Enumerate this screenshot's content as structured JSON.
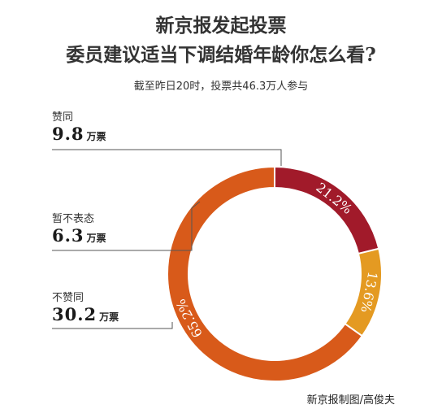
{
  "title_line1": "新京报发起投票",
  "title_line2": "委员建议适当下调结婚年龄你怎么看?",
  "subtitle": "截至昨日20时，投票共46.3万人参与",
  "legend": [
    {
      "name": "赞同",
      "num": "9.8",
      "unit": "万票"
    },
    {
      "name": "暂不表态",
      "num": "6.3",
      "unit": "万票"
    },
    {
      "name": "不赞同",
      "num": "30.2",
      "unit": "万票"
    }
  ],
  "credit": "新京报制图/高俊夫",
  "chart_data": {
    "type": "pie",
    "categories": [
      "赞同",
      "暂不表态",
      "不赞同"
    ],
    "values": [
      21.2,
      13.6,
      65.2
    ],
    "value_labels": [
      "21.2%",
      "13.6%",
      "65.2%"
    ],
    "votes_wan": [
      9.8,
      6.3,
      30.2
    ],
    "colors": [
      "#a11a2a",
      "#e49a22",
      "#d85a1a"
    ],
    "donut": true
  }
}
